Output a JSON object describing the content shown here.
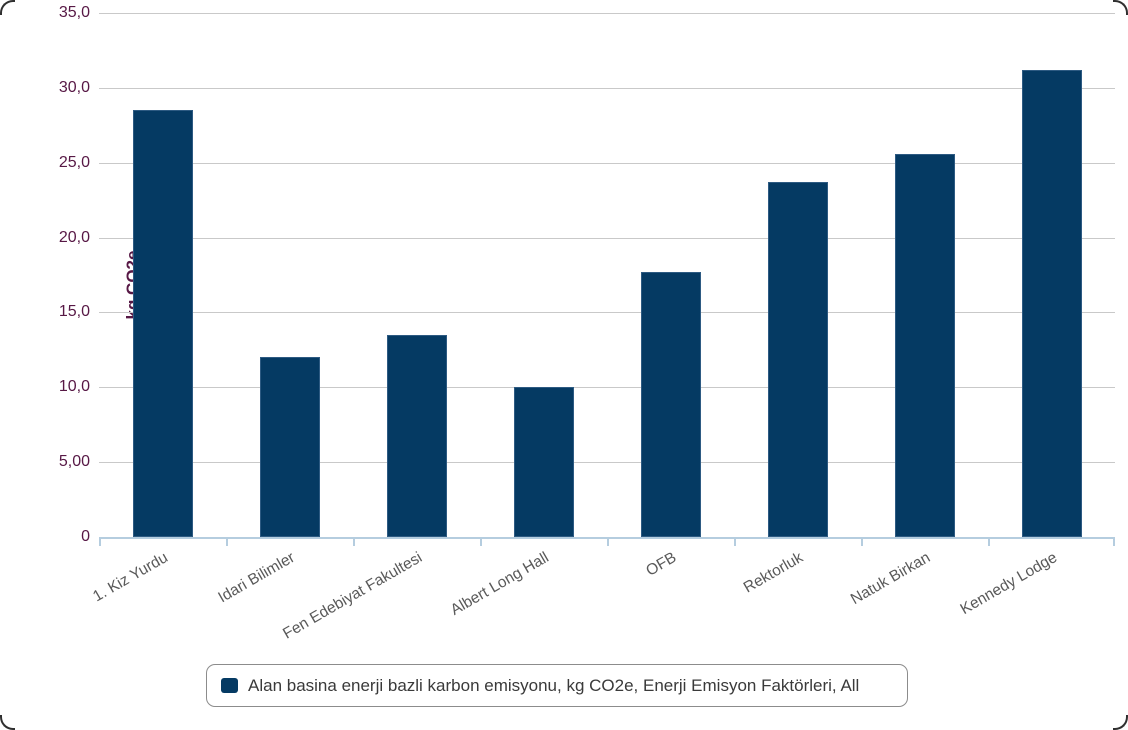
{
  "chart_data": {
    "type": "bar",
    "categories": [
      "1. Kiz Yurdu",
      "Idari Bilimler",
      "Fen Edebiyat Fakultesi",
      "Albert Long Hall",
      "OFB",
      "Rektorluk",
      "Natuk Birkan",
      "Kennedy Lodge"
    ],
    "values": [
      28.5,
      12.0,
      13.5,
      10.0,
      17.7,
      23.7,
      25.6,
      31.2
    ],
    "title": "",
    "xlabel": "",
    "ylabel": "kg CO2e",
    "ylim": [
      0,
      35
    ],
    "ytick_values": [
      0,
      5,
      10,
      15,
      20,
      25,
      30,
      35
    ],
    "ytick_labels": [
      "0",
      "5,00",
      "10,0",
      "15,0",
      "20,0",
      "25,0",
      "30,0",
      "35,0"
    ],
    "grid": "horizontal-gridlines-on",
    "legend_position": "bottom",
    "legend": [
      {
        "label": "Alan basina enerji bazli karbon emisyonu, kg CO2e, Enerji Emisyon Faktörleri, All",
        "color": "#053a63"
      }
    ]
  },
  "colors": {
    "bar_fill": "#053a63",
    "bar_edge": "#2d5a82",
    "axis_line": "#b5cddf",
    "gridline": "#c9c9c9",
    "ytick_text": "#571845",
    "ylabel_text": "#571845",
    "xtick_text": "#595959",
    "legend_text": "#3a3a3a",
    "legend_border": "#8c8c8c"
  }
}
